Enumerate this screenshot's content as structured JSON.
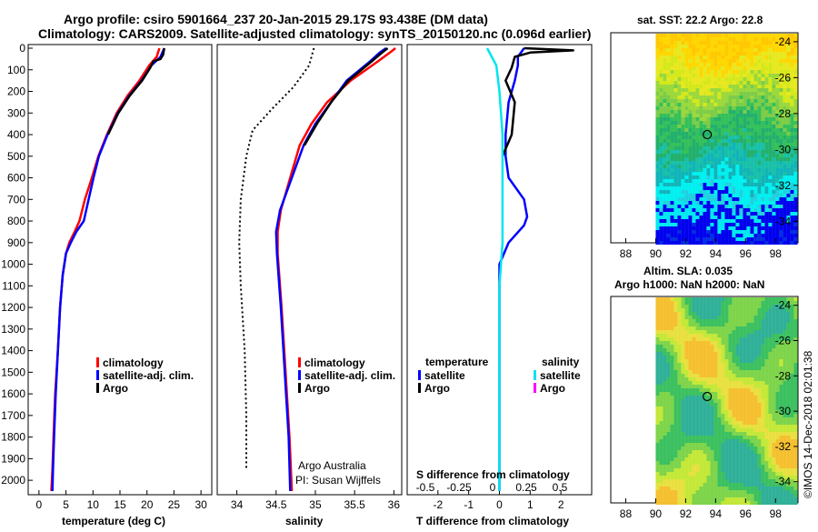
{
  "header": {
    "line1": "Argo profile: csiro 5901664_237 20-Jan-2015 29.17S 93.438E (DM data)",
    "line2": "Climatology: CARS2009. Satellite-adjusted climatology: synTS_20150120.nc (0.096d earlier)"
  },
  "colors": {
    "climatology": "#ff0000",
    "satellite": "#0000ff",
    "argo": "#000000",
    "sat_salinity": "#00e5ee",
    "argo_salinity": "#ff00ff"
  },
  "depth_axis": {
    "min": 0,
    "max": 2050,
    "ticks": [
      0,
      100,
      200,
      300,
      400,
      500,
      600,
      700,
      800,
      900,
      1000,
      1100,
      1200,
      1300,
      1400,
      1500,
      1600,
      1700,
      1800,
      1900,
      2000
    ]
  },
  "chart_data": [
    {
      "type": "line",
      "id": "temperature",
      "xlabel": "temperature (deg C)",
      "xlim": [
        -2,
        32
      ],
      "xticks": [
        0,
        5,
        10,
        15,
        20,
        25,
        30
      ],
      "series": [
        {
          "name": "climatology",
          "color": "#ff0000",
          "points": [
            [
              22.3,
              0
            ],
            [
              21.8,
              40
            ],
            [
              20.4,
              80
            ],
            [
              18.6,
              150
            ],
            [
              16.4,
              220
            ],
            [
              14.4,
              300
            ],
            [
              12.6,
              400
            ],
            [
              11.0,
              500
            ],
            [
              9.8,
              600
            ],
            [
              8.5,
              700
            ],
            [
              7.5,
              800
            ],
            [
              6.6,
              850
            ],
            [
              5.6,
              900
            ],
            [
              5.0,
              950
            ],
            [
              4.4,
              1050
            ],
            [
              3.9,
              1200
            ],
            [
              3.5,
              1400
            ],
            [
              3.0,
              1600
            ],
            [
              2.7,
              1800
            ],
            [
              2.5,
              1950
            ],
            [
              2.3,
              2050
            ]
          ]
        },
        {
          "name": "satellite-adj. clim.",
          "color": "#0000ff",
          "points": [
            [
              23.2,
              0
            ],
            [
              22.5,
              40
            ],
            [
              20.8,
              80
            ],
            [
              19.0,
              150
            ],
            [
              16.7,
              220
            ],
            [
              14.6,
              300
            ],
            [
              12.7,
              400
            ],
            [
              11.1,
              500
            ],
            [
              10.1,
              600
            ],
            [
              9.2,
              700
            ],
            [
              8.3,
              800
            ],
            [
              6.9,
              850
            ],
            [
              5.9,
              900
            ],
            [
              5.0,
              950
            ],
            [
              4.4,
              1050
            ],
            [
              3.9,
              1200
            ],
            [
              3.5,
              1400
            ],
            [
              3.1,
              1600
            ],
            [
              2.8,
              1800
            ],
            [
              2.6,
              1950
            ],
            [
              2.5,
              2050
            ]
          ]
        },
        {
          "name": "Argo",
          "color": "#000000",
          "points": [
            [
              23.2,
              0
            ],
            [
              23.0,
              30
            ],
            [
              22.5,
              50
            ],
            [
              21.2,
              60
            ],
            [
              20.6,
              90
            ],
            [
              19.1,
              150
            ],
            [
              16.8,
              220
            ],
            [
              14.7,
              300
            ],
            [
              12.8,
              400
            ]
          ]
        }
      ],
      "legend": [
        "climatology",
        "satellite-adj. clim.",
        "Argo"
      ]
    },
    {
      "type": "line",
      "id": "salinity",
      "xlabel": "salinity",
      "xlim": [
        33.75,
        36.1
      ],
      "xticks": [
        34,
        34.5,
        35,
        35.5,
        36
      ],
      "series": [
        {
          "name": "climatology",
          "color": "#ff0000",
          "points": [
            [
              36.02,
              0
            ],
            [
              35.95,
              20
            ],
            [
              35.8,
              60
            ],
            [
              35.45,
              150
            ],
            [
              35.15,
              250
            ],
            [
              34.95,
              350
            ],
            [
              34.8,
              450
            ],
            [
              34.68,
              600
            ],
            [
              34.56,
              750
            ],
            [
              34.52,
              850
            ],
            [
              34.52,
              950
            ],
            [
              34.57,
              1200
            ],
            [
              34.62,
              1500
            ],
            [
              34.67,
              1800
            ],
            [
              34.7,
              2050
            ]
          ]
        },
        {
          "name": "satellite-adj. clim.",
          "color": "#0000ff",
          "points": [
            [
              35.9,
              0
            ],
            [
              35.82,
              20
            ],
            [
              35.7,
              60
            ],
            [
              35.4,
              150
            ],
            [
              35.2,
              250
            ],
            [
              35.0,
              350
            ],
            [
              34.85,
              450
            ],
            [
              34.7,
              600
            ],
            [
              34.55,
              750
            ],
            [
              34.5,
              850
            ],
            [
              34.51,
              950
            ],
            [
              34.56,
              1200
            ],
            [
              34.61,
              1500
            ],
            [
              34.66,
              1800
            ],
            [
              34.68,
              2050
            ]
          ]
        },
        {
          "name": "Argo",
          "color": "#000000",
          "points": [
            [
              35.92,
              0
            ],
            [
              35.85,
              20
            ],
            [
              35.72,
              60
            ],
            [
              35.42,
              150
            ],
            [
              35.2,
              250
            ],
            [
              35.02,
              350
            ],
            [
              34.86,
              450
            ]
          ]
        },
        {
          "name": "std",
          "color": "#000000",
          "dotted": true,
          "points": [
            [
              34.98,
              0
            ],
            [
              34.92,
              80
            ],
            [
              34.72,
              180
            ],
            [
              34.45,
              280
            ],
            [
              34.2,
              380
            ],
            [
              34.12,
              500
            ],
            [
              34.05,
              700
            ],
            [
              34.03,
              900
            ],
            [
              34.05,
              1100
            ],
            [
              34.1,
              1400
            ],
            [
              34.12,
              1700
            ],
            [
              34.12,
              1950
            ]
          ]
        }
      ],
      "legend": [
        "climatology",
        "satellite-adj. clim.",
        "Argo"
      ],
      "annotation_lines": [
        "Argo Australia",
        "PI: Susan Wijffels"
      ]
    },
    {
      "type": "line",
      "id": "difference",
      "xlabel": "T difference from climatology",
      "xlabel_top": "S difference from climatology",
      "xlim": [
        -3,
        3
      ],
      "xticks": [
        -2,
        -1,
        0,
        1,
        2
      ],
      "xticks_top": [
        "-0.5",
        "-0.25",
        "0",
        "0.25",
        "0.5"
      ],
      "series": [
        {
          "name": "temperature satellite",
          "color": "#0000ff",
          "points": [
            [
              0.8,
              0
            ],
            [
              0.6,
              40
            ],
            [
              0.6,
              80
            ],
            [
              0.5,
              150
            ],
            [
              0.3,
              250
            ],
            [
              0.2,
              400
            ],
            [
              0.2,
              500
            ],
            [
              0.3,
              600
            ],
            [
              0.8,
              700
            ],
            [
              0.9,
              780
            ],
            [
              0.8,
              820
            ],
            [
              0.3,
              900
            ],
            [
              0,
              1000
            ],
            [
              0,
              1200
            ],
            [
              0,
              1500
            ],
            [
              0,
              2050
            ]
          ]
        },
        {
          "name": "temperature Argo",
          "color": "#000000",
          "points": [
            [
              0.8,
              0
            ],
            [
              2.4,
              10
            ],
            [
              1.0,
              20
            ],
            [
              0.5,
              40
            ],
            [
              0.4,
              90
            ],
            [
              0.2,
              150
            ],
            [
              0.5,
              250
            ],
            [
              0.4,
              400
            ],
            [
              0.1,
              500
            ]
          ]
        },
        {
          "name": "salinity satellite",
          "color": "#00e5ee",
          "points": [
            [
              -0.4,
              0
            ],
            [
              -0.1,
              80
            ],
            [
              0,
              200
            ],
            [
              0.1,
              400
            ],
            [
              0.1,
              700
            ],
            [
              0.1,
              900
            ],
            [
              0,
              1100
            ],
            [
              0,
              1500
            ],
            [
              0,
              2050
            ]
          ]
        }
      ],
      "legend_left_title": "temperature",
      "legend_right_title": "salinity",
      "legend_left": [
        "satellite",
        "Argo"
      ],
      "legend_right": [
        "satellite",
        "Argo"
      ]
    },
    {
      "type": "heatmap",
      "id": "sst-map",
      "title": "sat. SST: 22.2 Argo: 22.8",
      "xticks": [
        88,
        90,
        92,
        94,
        96,
        98
      ],
      "yticks": [
        -24,
        -26,
        -28,
        -30,
        -32,
        -34
      ],
      "lon_range": [
        87,
        99.5
      ],
      "lat_range": [
        -35.2,
        -23.5
      ],
      "argo_pos": [
        93.438,
        -29.17
      ]
    },
    {
      "type": "heatmap",
      "id": "sla-map",
      "title1": "Altim. SLA: 0.035",
      "title2": "Argo h1000: NaN h2000: NaN",
      "xticks": [
        88,
        90,
        92,
        94,
        96,
        98
      ],
      "yticks": [
        -24,
        -26,
        -28,
        -30,
        -32,
        -34
      ],
      "lon_range": [
        87,
        99.5
      ],
      "lat_range": [
        -35.2,
        -23.5
      ],
      "argo_pos": [
        93.438,
        -29.17
      ]
    }
  ],
  "footer": "©IMOS 14-Dec-2018 02:01:38"
}
